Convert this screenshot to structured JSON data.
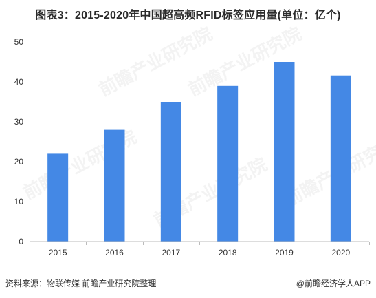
{
  "title": "图表3：2015-2020年中国超高频RFID标签应用量(单位：亿个)",
  "colors": {
    "bar": "#4488e5",
    "axis": "#bbbbbb",
    "text": "#333333"
  },
  "footer": {
    "source": "资料来源：物联传媒 前瞻产业研究院整理",
    "credit": "@前瞻经济学人APP"
  },
  "watermark": "前瞻产业研究院",
  "chart_data": {
    "type": "bar",
    "title": "图表3：2015-2020年中国超高频RFID标签应用量(单位：亿个)",
    "categories": [
      "2015",
      "2016",
      "2017",
      "2018",
      "2019",
      "2020"
    ],
    "values": [
      22,
      28,
      35,
      39,
      45,
      41.6
    ],
    "ylim": [
      0,
      50
    ],
    "yticks": [
      0,
      10,
      20,
      30,
      40,
      50
    ],
    "xlabel": "",
    "ylabel": "",
    "grid": false,
    "legend": "none"
  }
}
